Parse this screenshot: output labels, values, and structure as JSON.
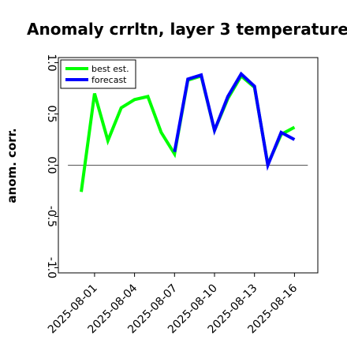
{
  "chart_data": {
    "type": "line",
    "title": "Anomaly crrltn, layer 3 temperature",
    "ylabel": "anom. corr.",
    "xlabel": "",
    "ylim": [
      -1.05,
      1.05
    ],
    "yticks": [
      -1.0,
      -0.5,
      0.0,
      0.5,
      1.0
    ],
    "ytick_labels": [
      "-1.0",
      "-0.5",
      "0.0",
      "0.5",
      "1.0"
    ],
    "x": [
      "2025-07-31",
      "2025-08-01",
      "2025-08-02",
      "2025-08-03",
      "2025-08-04",
      "2025-08-05",
      "2025-08-06",
      "2025-08-07",
      "2025-08-08",
      "2025-08-09",
      "2025-08-10",
      "2025-08-11",
      "2025-08-12",
      "2025-08-13",
      "2025-08-14",
      "2025-08-15",
      "2025-08-16"
    ],
    "xtick_labels": [
      "2025-08-01",
      "2025-08-04",
      "2025-08-07",
      "2025-08-10",
      "2025-08-13",
      "2025-08-16"
    ],
    "xtick_colors": [
      "#000000",
      "#000000",
      "#008000",
      "#000000",
      "#000000",
      "#000000"
    ],
    "legend_position": "top-left",
    "reference_line": 0,
    "series": [
      {
        "name": "best est.",
        "color": "#00ff00",
        "x": [
          "2025-07-31",
          "2025-08-01",
          "2025-08-02",
          "2025-08-03",
          "2025-08-04",
          "2025-08-05",
          "2025-08-06",
          "2025-08-07",
          "2025-08-08",
          "2025-08-09",
          "2025-08-10",
          "2025-08-11",
          "2025-08-12",
          "2025-08-13",
          "2025-08-14",
          "2025-08-15",
          "2025-08-16"
        ],
        "values": [
          -0.26,
          0.7,
          0.24,
          0.56,
          0.64,
          0.67,
          0.32,
          0.11,
          0.83,
          0.87,
          0.34,
          0.65,
          0.87,
          0.76,
          0.01,
          0.3,
          0.37
        ]
      },
      {
        "name": "forecast",
        "color": "#0000ff",
        "x": [
          "2025-08-07",
          "2025-08-08",
          "2025-08-09",
          "2025-08-10",
          "2025-08-11",
          "2025-08-12",
          "2025-08-13",
          "2025-08-14",
          "2025-08-15",
          "2025-08-16"
        ],
        "values": [
          0.13,
          0.84,
          0.88,
          0.34,
          0.67,
          0.89,
          0.77,
          0.0,
          0.32,
          0.25
        ]
      }
    ]
  }
}
